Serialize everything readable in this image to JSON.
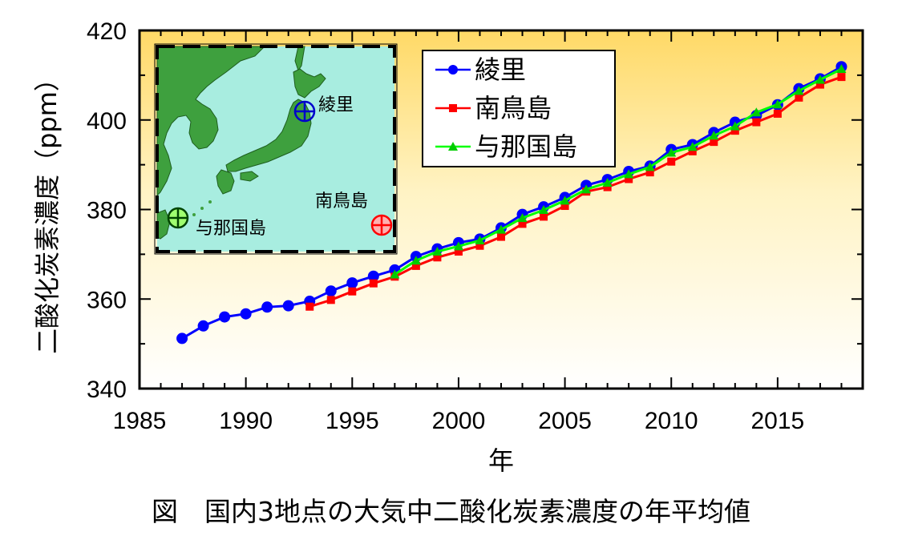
{
  "caption": "図　国内3地点の大気中二酸化炭素濃度の年平均値",
  "chart_data": {
    "type": "line",
    "title": "",
    "xlabel": "年",
    "ylabel": "二酸化炭素濃度（ppm）",
    "xlim": [
      1985,
      2019
    ],
    "ylim": [
      340,
      420
    ],
    "xticks": [
      1985,
      1990,
      1995,
      2000,
      2005,
      2010,
      2015
    ],
    "yticks": [
      340,
      360,
      380,
      400,
      420
    ],
    "grid": false,
    "legend_position": "top-right",
    "series": [
      {
        "name": "綾里",
        "color": "#0000ff",
        "marker": "circle",
        "x": [
          1987,
          1988,
          1989,
          1990,
          1991,
          1992,
          1993,
          1994,
          1995,
          1996,
          1997,
          1998,
          1999,
          2000,
          2001,
          2002,
          2003,
          2004,
          2005,
          2006,
          2007,
          2008,
          2009,
          2010,
          2011,
          2012,
          2013,
          2014,
          2015,
          2016,
          2017,
          2018
        ],
        "values": [
          351.2,
          354.0,
          356.0,
          356.7,
          358.2,
          358.5,
          359.5,
          361.8,
          363.6,
          365.1,
          366.5,
          369.5,
          371.2,
          372.6,
          373.4,
          375.9,
          378.9,
          380.6,
          382.7,
          385.4,
          386.7,
          388.5,
          389.7,
          393.4,
          394.5,
          397.2,
          399.5,
          401.0,
          403.4,
          407.0,
          409.2,
          411.9
        ]
      },
      {
        "name": "南鳥島",
        "color": "#ff0000",
        "marker": "square",
        "x": [
          1993,
          1994,
          1995,
          1996,
          1997,
          1998,
          1999,
          2000,
          2001,
          2002,
          2003,
          2004,
          2005,
          2006,
          2007,
          2008,
          2009,
          2010,
          2011,
          2012,
          2013,
          2014,
          2015,
          2016,
          2017,
          2018
        ],
        "values": [
          358.3,
          359.8,
          361.7,
          363.5,
          365.0,
          367.4,
          369.3,
          370.6,
          371.9,
          373.9,
          376.8,
          378.4,
          380.8,
          384.0,
          385.0,
          386.8,
          388.3,
          390.7,
          393.0,
          395.1,
          397.6,
          399.5,
          401.4,
          405.0,
          407.9,
          409.6
        ]
      },
      {
        "name": "与那国島",
        "color": "#00ff00",
        "marker": "triangle",
        "x": [
          1997,
          1998,
          1999,
          2000,
          2001,
          2002,
          2003,
          2004,
          2005,
          2006,
          2007,
          2008,
          2009,
          2010,
          2011,
          2012,
          2013,
          2014,
          2015,
          2016,
          2017,
          2018
        ],
        "values": [
          365.5,
          368.6,
          370.6,
          371.8,
          373.1,
          375.5,
          378.1,
          379.9,
          382.0,
          384.5,
          386.0,
          387.9,
          389.5,
          392.7,
          394.0,
          396.5,
          398.6,
          401.7,
          403.5,
          406.5,
          409.0,
          411.4
        ]
      }
    ],
    "inset_map": {
      "labels": [
        {
          "text": "綾里",
          "marker_color": "#0000cc"
        },
        {
          "text": "南鳥島",
          "marker_color": "#ff0000"
        },
        {
          "text": "与那国島",
          "marker_color": "#006600"
        }
      ],
      "colors": {
        "sea": "#a8ede0",
        "land": "#3ea03e"
      }
    }
  }
}
